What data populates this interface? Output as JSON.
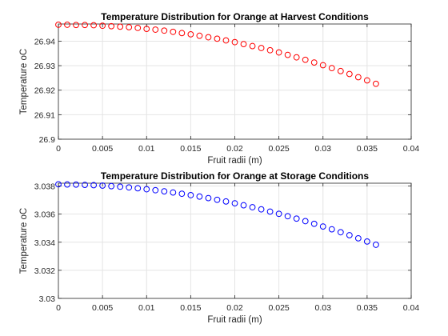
{
  "chart_data": [
    {
      "type": "scatter",
      "title": "Temperature Distribution for Orange at Harvest Conditions",
      "xlabel": "Fruit radii (m)",
      "ylabel": "Temperature oC",
      "xlim": [
        0,
        0.04
      ],
      "ylim": [
        26.9,
        26.947
      ],
      "grid": true,
      "marker": "circle-open",
      "color": "#ff0000",
      "x_ticks": [
        0,
        0.005,
        0.01,
        0.015,
        0.02,
        0.025,
        0.03,
        0.035,
        0.04
      ],
      "x_tick_labels": [
        "0",
        "0.005",
        "0.01",
        "0.015",
        "0.02",
        "0.025",
        "0.03",
        "0.035",
        "0.04"
      ],
      "y_ticks": [
        26.9,
        26.91,
        26.92,
        26.93,
        26.94
      ],
      "y_tick_labels": [
        "26.9",
        "26.91",
        "26.92",
        "26.93",
        "26.94"
      ],
      "x": [
        0,
        0.001,
        0.002,
        0.003,
        0.004,
        0.005,
        0.006,
        0.007,
        0.008,
        0.009,
        0.01,
        0.011,
        0.012,
        0.013,
        0.014,
        0.015,
        0.016,
        0.017,
        0.018,
        0.019,
        0.02,
        0.021,
        0.022,
        0.023,
        0.024,
        0.025,
        0.026,
        0.027,
        0.028,
        0.029,
        0.03,
        0.031,
        0.032,
        0.033,
        0.034,
        0.035,
        0.036
      ],
      "y": [
        26.9467,
        26.9467,
        26.9466,
        26.9466,
        26.9465,
        26.9463,
        26.9461,
        26.9459,
        26.9457,
        26.9454,
        26.945,
        26.9447,
        26.9443,
        26.9438,
        26.9433,
        26.9428,
        26.9422,
        26.9416,
        26.941,
        26.9403,
        26.9396,
        26.9388,
        26.938,
        26.9372,
        26.9363,
        26.9354,
        26.9344,
        26.9334,
        26.9324,
        26.9313,
        26.9302,
        26.929,
        26.9278,
        26.9266,
        26.9253,
        26.924,
        26.9226
      ]
    },
    {
      "type": "scatter",
      "title": "Temperature Distribution for Orange at Storage Conditions",
      "xlabel": "Fruit radii (m)",
      "ylabel": "Temperature oC",
      "xlim": [
        0,
        0.04
      ],
      "ylim": [
        3.03,
        3.0382
      ],
      "grid": true,
      "marker": "circle-open",
      "color": "#0000ff",
      "x_ticks": [
        0,
        0.005,
        0.01,
        0.015,
        0.02,
        0.025,
        0.03,
        0.035,
        0.04
      ],
      "x_tick_labels": [
        "0",
        "0.005",
        "0.01",
        "0.015",
        "0.02",
        "0.025",
        "0.03",
        "0.035",
        "0.04"
      ],
      "y_ticks": [
        3.03,
        3.032,
        3.034,
        3.036,
        3.038
      ],
      "y_tick_labels": [
        "3.03",
        "3.032",
        "3.034",
        "3.036",
        "3.038"
      ],
      "x": [
        0,
        0.001,
        0.002,
        0.003,
        0.004,
        0.005,
        0.006,
        0.007,
        0.008,
        0.009,
        0.01,
        0.011,
        0.012,
        0.013,
        0.014,
        0.015,
        0.016,
        0.017,
        0.018,
        0.019,
        0.02,
        0.021,
        0.022,
        0.023,
        0.024,
        0.025,
        0.026,
        0.027,
        0.028,
        0.029,
        0.03,
        0.031,
        0.032,
        0.033,
        0.034,
        0.035,
        0.036
      ],
      "y": [
        3.03812,
        3.03811,
        3.0381,
        3.03808,
        3.03806,
        3.03803,
        3.03799,
        3.03795,
        3.0379,
        3.03784,
        3.03777,
        3.0377,
        3.03762,
        3.03754,
        3.03745,
        3.03735,
        3.03725,
        3.03714,
        3.03702,
        3.0369,
        3.03677,
        3.03663,
        3.03649,
        3.03634,
        3.03618,
        3.03602,
        3.03585,
        3.03568,
        3.0355,
        3.03531,
        3.03512,
        3.03492,
        3.03471,
        3.0345,
        3.03428,
        3.03405,
        3.03382
      ]
    }
  ]
}
